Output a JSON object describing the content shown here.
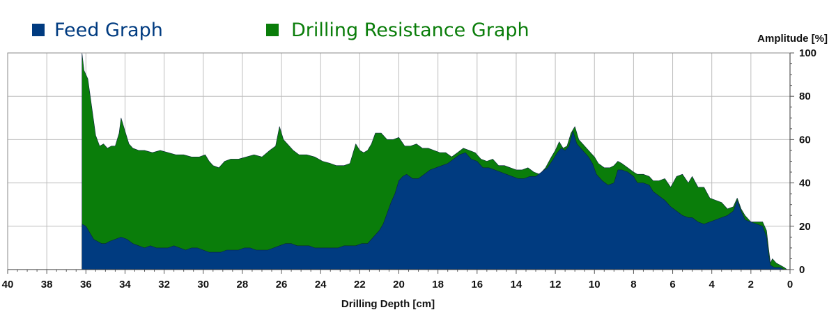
{
  "chart_data": {
    "type": "area",
    "xlabel": "Drilling Depth [cm]",
    "ylabel": "Amplitude [%]",
    "xlim": [
      40,
      0
    ],
    "ylim": [
      0,
      100
    ],
    "x_ticks": [
      40,
      38,
      36,
      34,
      32,
      30,
      28,
      26,
      24,
      22,
      20,
      18,
      16,
      14,
      12,
      10,
      8,
      6,
      4,
      2,
      0
    ],
    "y_ticks": [
      0,
      20,
      40,
      60,
      80,
      100
    ],
    "grid": true,
    "legend_position": "top-left",
    "series": [
      {
        "name": "Drilling Resistance Graph",
        "color": "#0a7d0a",
        "points": [
          [
            36.2,
            0
          ],
          [
            36.2,
            100
          ],
          [
            36.1,
            92
          ],
          [
            35.9,
            88
          ],
          [
            35.7,
            75
          ],
          [
            35.5,
            62
          ],
          [
            35.3,
            57
          ],
          [
            35.1,
            58
          ],
          [
            34.9,
            56
          ],
          [
            34.7,
            57
          ],
          [
            34.5,
            57
          ],
          [
            34.3,
            63
          ],
          [
            34.2,
            70
          ],
          [
            34.0,
            64
          ],
          [
            33.8,
            58
          ],
          [
            33.6,
            56
          ],
          [
            33.3,
            55
          ],
          [
            33.0,
            55
          ],
          [
            32.6,
            54
          ],
          [
            32.2,
            55
          ],
          [
            31.8,
            54
          ],
          [
            31.4,
            53
          ],
          [
            31.0,
            53
          ],
          [
            30.6,
            52
          ],
          [
            30.2,
            52
          ],
          [
            29.9,
            53
          ],
          [
            29.7,
            50
          ],
          [
            29.5,
            48
          ],
          [
            29.2,
            47
          ],
          [
            28.9,
            50
          ],
          [
            28.6,
            51
          ],
          [
            28.2,
            51
          ],
          [
            27.8,
            52
          ],
          [
            27.4,
            53
          ],
          [
            27.0,
            52
          ],
          [
            26.6,
            55
          ],
          [
            26.3,
            57
          ],
          [
            26.1,
            66
          ],
          [
            25.9,
            60
          ],
          [
            25.7,
            58
          ],
          [
            25.4,
            55
          ],
          [
            25.1,
            53
          ],
          [
            24.7,
            53
          ],
          [
            24.3,
            52
          ],
          [
            23.9,
            50
          ],
          [
            23.5,
            49
          ],
          [
            23.2,
            48
          ],
          [
            22.8,
            48
          ],
          [
            22.5,
            49
          ],
          [
            22.2,
            58
          ],
          [
            22.0,
            55
          ],
          [
            21.8,
            54
          ],
          [
            21.6,
            55
          ],
          [
            21.4,
            58
          ],
          [
            21.2,
            63
          ],
          [
            20.9,
            63
          ],
          [
            20.6,
            60
          ],
          [
            20.3,
            60
          ],
          [
            20.0,
            61
          ],
          [
            19.7,
            57
          ],
          [
            19.4,
            57
          ],
          [
            19.1,
            58
          ],
          [
            18.8,
            56
          ],
          [
            18.5,
            56
          ],
          [
            18.2,
            55
          ],
          [
            17.9,
            54
          ],
          [
            17.6,
            54
          ],
          [
            17.3,
            52
          ],
          [
            17.0,
            54
          ],
          [
            16.7,
            56
          ],
          [
            16.4,
            55
          ],
          [
            16.1,
            54
          ],
          [
            15.8,
            51
          ],
          [
            15.5,
            50
          ],
          [
            15.2,
            51
          ],
          [
            14.9,
            48
          ],
          [
            14.6,
            48
          ],
          [
            14.3,
            47
          ],
          [
            14.0,
            46
          ],
          [
            13.7,
            46
          ],
          [
            13.4,
            47
          ],
          [
            13.1,
            45
          ],
          [
            12.8,
            44
          ],
          [
            12.5,
            47
          ],
          [
            12.2,
            52
          ],
          [
            12.0,
            55
          ],
          [
            11.8,
            59
          ],
          [
            11.6,
            56
          ],
          [
            11.4,
            57
          ],
          [
            11.2,
            63
          ],
          [
            11.0,
            66
          ],
          [
            10.8,
            60
          ],
          [
            10.6,
            58
          ],
          [
            10.3,
            55
          ],
          [
            10.0,
            52
          ],
          [
            9.8,
            49
          ],
          [
            9.5,
            47
          ],
          [
            9.2,
            47
          ],
          [
            9.0,
            48
          ],
          [
            8.8,
            50
          ],
          [
            8.6,
            49
          ],
          [
            8.3,
            47
          ],
          [
            8.0,
            45
          ],
          [
            7.8,
            44
          ],
          [
            7.5,
            44
          ],
          [
            7.2,
            43
          ],
          [
            7.0,
            41
          ],
          [
            6.7,
            41
          ],
          [
            6.4,
            42
          ],
          [
            6.1,
            38
          ],
          [
            5.8,
            43
          ],
          [
            5.5,
            44
          ],
          [
            5.2,
            40
          ],
          [
            5.0,
            43
          ],
          [
            4.7,
            38
          ],
          [
            4.4,
            38
          ],
          [
            4.1,
            33
          ],
          [
            3.8,
            32
          ],
          [
            3.5,
            31
          ],
          [
            3.2,
            28
          ],
          [
            2.9,
            29
          ],
          [
            2.7,
            33
          ],
          [
            2.5,
            28
          ],
          [
            2.3,
            25
          ],
          [
            2.0,
            22
          ],
          [
            1.7,
            22
          ],
          [
            1.4,
            22
          ],
          [
            1.2,
            18
          ],
          [
            1.1,
            10
          ],
          [
            1.0,
            3
          ],
          [
            0.9,
            5
          ],
          [
            0.7,
            3
          ],
          [
            0.5,
            2
          ],
          [
            0.3,
            1
          ],
          [
            0.15,
            0
          ]
        ]
      },
      {
        "name": "Feed Graph",
        "color": "#003b80",
        "points": [
          [
            36.2,
            0
          ],
          [
            36.2,
            21
          ],
          [
            36.0,
            20
          ],
          [
            35.8,
            17
          ],
          [
            35.6,
            14
          ],
          [
            35.4,
            13
          ],
          [
            35.2,
            12
          ],
          [
            35.0,
            12
          ],
          [
            34.8,
            13
          ],
          [
            34.5,
            14
          ],
          [
            34.2,
            15
          ],
          [
            33.9,
            14
          ],
          [
            33.6,
            12
          ],
          [
            33.3,
            11
          ],
          [
            33.0,
            10
          ],
          [
            32.7,
            11
          ],
          [
            32.4,
            10
          ],
          [
            32.1,
            10
          ],
          [
            31.8,
            10
          ],
          [
            31.5,
            11
          ],
          [
            31.2,
            10
          ],
          [
            30.9,
            9
          ],
          [
            30.6,
            10
          ],
          [
            30.3,
            10
          ],
          [
            30.0,
            9
          ],
          [
            29.7,
            8
          ],
          [
            29.4,
            8
          ],
          [
            29.1,
            8
          ],
          [
            28.8,
            9
          ],
          [
            28.5,
            9
          ],
          [
            28.2,
            9
          ],
          [
            27.9,
            10
          ],
          [
            27.6,
            10
          ],
          [
            27.3,
            9
          ],
          [
            27.0,
            9
          ],
          [
            26.7,
            9
          ],
          [
            26.4,
            10
          ],
          [
            26.1,
            11
          ],
          [
            25.8,
            12
          ],
          [
            25.5,
            12
          ],
          [
            25.2,
            11
          ],
          [
            24.9,
            11
          ],
          [
            24.6,
            11
          ],
          [
            24.3,
            10
          ],
          [
            24.0,
            10
          ],
          [
            23.7,
            10
          ],
          [
            23.4,
            10
          ],
          [
            23.1,
            10
          ],
          [
            22.8,
            11
          ],
          [
            22.5,
            11
          ],
          [
            22.2,
            11
          ],
          [
            21.9,
            12
          ],
          [
            21.6,
            12
          ],
          [
            21.4,
            14
          ],
          [
            21.2,
            16
          ],
          [
            21.0,
            18
          ],
          [
            20.8,
            21
          ],
          [
            20.6,
            26
          ],
          [
            20.4,
            31
          ],
          [
            20.2,
            35
          ],
          [
            20.0,
            41
          ],
          [
            19.8,
            43
          ],
          [
            19.6,
            44
          ],
          [
            19.3,
            42
          ],
          [
            19.0,
            42
          ],
          [
            18.7,
            44
          ],
          [
            18.4,
            46
          ],
          [
            18.1,
            47
          ],
          [
            17.8,
            48
          ],
          [
            17.5,
            49
          ],
          [
            17.2,
            51
          ],
          [
            16.9,
            53
          ],
          [
            16.6,
            54
          ],
          [
            16.3,
            51
          ],
          [
            16.0,
            50
          ],
          [
            15.7,
            47
          ],
          [
            15.4,
            47
          ],
          [
            15.1,
            46
          ],
          [
            14.8,
            45
          ],
          [
            14.5,
            44
          ],
          [
            14.2,
            43
          ],
          [
            13.9,
            42
          ],
          [
            13.6,
            42
          ],
          [
            13.3,
            43
          ],
          [
            13.0,
            43
          ],
          [
            12.7,
            45
          ],
          [
            12.4,
            47
          ],
          [
            12.1,
            51
          ],
          [
            11.9,
            54
          ],
          [
            11.7,
            56
          ],
          [
            11.5,
            55
          ],
          [
            11.3,
            57
          ],
          [
            11.1,
            64
          ],
          [
            10.9,
            58
          ],
          [
            10.7,
            56
          ],
          [
            10.5,
            54
          ],
          [
            10.3,
            52
          ],
          [
            10.1,
            49
          ],
          [
            9.9,
            44
          ],
          [
            9.6,
            41
          ],
          [
            9.3,
            39
          ],
          [
            9.0,
            40
          ],
          [
            8.8,
            46
          ],
          [
            8.6,
            46
          ],
          [
            8.3,
            45
          ],
          [
            8.0,
            43
          ],
          [
            7.8,
            40
          ],
          [
            7.5,
            40
          ],
          [
            7.2,
            39
          ],
          [
            7.0,
            36
          ],
          [
            6.7,
            34
          ],
          [
            6.4,
            32
          ],
          [
            6.1,
            29
          ],
          [
            5.8,
            27
          ],
          [
            5.5,
            25
          ],
          [
            5.2,
            24
          ],
          [
            5.0,
            24
          ],
          [
            4.7,
            22
          ],
          [
            4.4,
            21
          ],
          [
            4.1,
            22
          ],
          [
            3.8,
            23
          ],
          [
            3.5,
            24
          ],
          [
            3.2,
            25
          ],
          [
            2.9,
            27
          ],
          [
            2.7,
            32
          ],
          [
            2.5,
            27
          ],
          [
            2.3,
            23
          ],
          [
            2.0,
            22
          ],
          [
            1.7,
            21
          ],
          [
            1.4,
            20
          ],
          [
            1.2,
            15
          ],
          [
            1.1,
            7
          ],
          [
            1.0,
            2
          ],
          [
            0.8,
            1
          ],
          [
            0.5,
            1
          ],
          [
            0.3,
            0
          ]
        ]
      }
    ]
  },
  "legend": [
    {
      "label": "Feed Graph",
      "color": "#003b80"
    },
    {
      "label": "Drilling Resistance Graph",
      "color": "#0a7d0a"
    }
  ],
  "y_axis_title": "Amplitude [%]",
  "x_axis_title": "Drilling Depth [cm]"
}
